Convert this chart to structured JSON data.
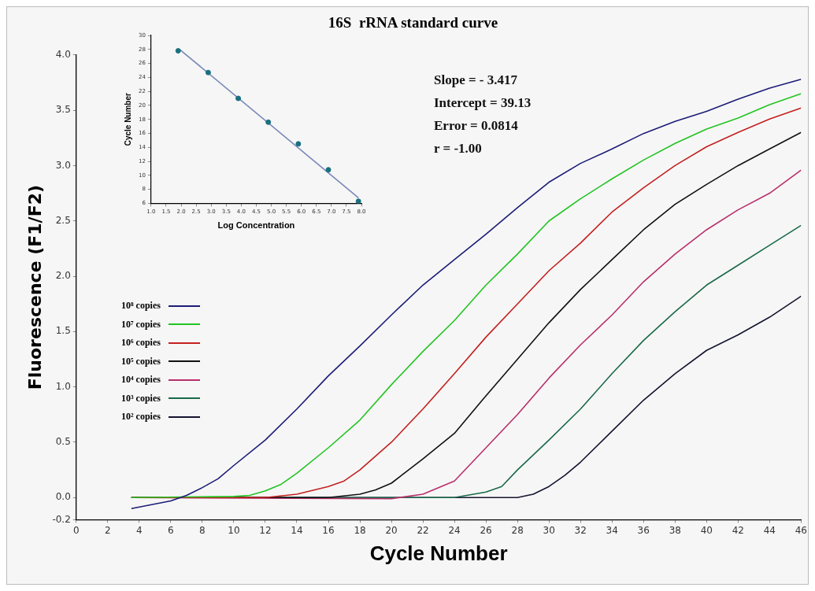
{
  "chart_data": [
    {
      "type": "line",
      "title": "16S  rRNA standard curve",
      "xlabel": "Cycle Number",
      "ylabel": "Fluorescence (F1/F2)",
      "xlim": [
        0,
        46
      ],
      "xticks": [
        0,
        2,
        4,
        6,
        8,
        10,
        12,
        14,
        16,
        18,
        20,
        22,
        24,
        26,
        28,
        30,
        32,
        34,
        36,
        38,
        40,
        42,
        44,
        46
      ],
      "ylim": [
        -0.2,
        4.0
      ],
      "yticks": [
        -0.2,
        {
          "value": 0,
          "label": "0.0"
        },
        0.5,
        {
          "value": 1,
          "label": "1.0"
        },
        1.5,
        {
          "value": 2,
          "label": "2.0"
        },
        2.5,
        {
          "value": 3,
          "label": "3.0"
        },
        3.5,
        {
          "value": 4,
          "label": "4.0"
        }
      ],
      "grid": false,
      "legend": "left",
      "marker": "none",
      "annotations": [
        "Slope = - 3.417",
        "Intercept = 39.13",
        "Error = 0.0814",
        "r = -1.00"
      ],
      "series": [
        {
          "name": "10⁸ copies",
          "color": "#1c1c78",
          "x": [
            3.5,
            6,
            7,
            8,
            9,
            10,
            12,
            14,
            16,
            18,
            20,
            22,
            24,
            26,
            28,
            30,
            32,
            34,
            36,
            38,
            40,
            42,
            44,
            46
          ],
          "values": [
            -0.1,
            -0.03,
            0.02,
            0.09,
            0.17,
            0.29,
            0.52,
            0.8,
            1.1,
            1.37,
            1.65,
            1.92,
            2.15,
            2.38,
            2.62,
            2.85,
            3.02,
            3.15,
            3.29,
            3.4,
            3.49,
            3.6,
            3.7,
            3.78
          ]
        },
        {
          "name": "10⁷ copies",
          "color": "#22c422",
          "x": [
            3.5,
            10,
            11,
            12,
            13,
            14,
            16,
            18,
            20,
            22,
            24,
            26,
            28,
            30,
            32,
            34,
            36,
            38,
            40,
            42,
            44,
            46
          ],
          "values": [
            0,
            0.01,
            0.02,
            0.06,
            0.12,
            0.22,
            0.45,
            0.7,
            1.02,
            1.32,
            1.6,
            1.92,
            2.2,
            2.5,
            2.7,
            2.88,
            3.05,
            3.2,
            3.33,
            3.43,
            3.55,
            3.65
          ]
        },
        {
          "name": "10⁶ copies",
          "color": "#c42020",
          "x": [
            3.5,
            12,
            14,
            16,
            17,
            18,
            20,
            22,
            24,
            26,
            28,
            30,
            32,
            34,
            36,
            38,
            40,
            42,
            44,
            46
          ],
          "values": [
            0,
            0,
            0.03,
            0.1,
            0.15,
            0.25,
            0.5,
            0.8,
            1.12,
            1.45,
            1.75,
            2.05,
            2.3,
            2.58,
            2.8,
            3.0,
            3.17,
            3.3,
            3.42,
            3.52
          ]
        },
        {
          "name": "10⁵ copies",
          "color": "#111111",
          "x": [
            3.5,
            16,
            18,
            19,
            20,
            22,
            24,
            26,
            28,
            30,
            32,
            34,
            36,
            38,
            40,
            42,
            44,
            46
          ],
          "values": [
            0,
            0,
            0.03,
            0.07,
            0.13,
            0.35,
            0.58,
            0.92,
            1.25,
            1.58,
            1.88,
            2.15,
            2.42,
            2.65,
            2.83,
            3.0,
            3.15,
            3.3
          ]
        },
        {
          "name": "10⁴ copies",
          "color": "#b8306a",
          "x": [
            3.5,
            20,
            22,
            24,
            26,
            28,
            30,
            32,
            34,
            36,
            38,
            40,
            42,
            44,
            46
          ],
          "values": [
            0,
            -0.01,
            0.03,
            0.15,
            0.45,
            0.75,
            1.08,
            1.38,
            1.65,
            1.95,
            2.2,
            2.42,
            2.6,
            2.75,
            2.96
          ]
        },
        {
          "name": "10³ copies",
          "color": "#1a6a48",
          "x": [
            3.5,
            24,
            26,
            27,
            28,
            30,
            32,
            34,
            36,
            38,
            40,
            42,
            44,
            46
          ],
          "values": [
            0,
            0,
            0.05,
            0.1,
            0.25,
            0.52,
            0.8,
            1.12,
            1.42,
            1.68,
            1.92,
            2.1,
            2.28,
            2.46
          ]
        },
        {
          "name": "10² copies",
          "color": "#141430",
          "x": [
            3.5,
            28,
            29,
            30,
            31,
            32,
            34,
            36,
            38,
            40,
            42,
            44,
            46
          ],
          "values": [
            0,
            0,
            0.03,
            0.1,
            0.2,
            0.32,
            0.6,
            0.88,
            1.12,
            1.33,
            1.47,
            1.63,
            1.82
          ]
        }
      ]
    },
    {
      "type": "scatter",
      "xlabel": "Log Concentration",
      "ylabel": "Cycle Number",
      "xlim": [
        1,
        8
      ],
      "xticks": [
        {
          "value": 1,
          "label": "1.0"
        },
        1.5,
        {
          "value": 2,
          "label": "2.0"
        },
        2.5,
        {
          "value": 3,
          "label": "3.0"
        },
        3.5,
        {
          "value": 4,
          "label": "4.0"
        },
        4.5,
        {
          "value": 5,
          "label": "5.0"
        },
        5.5,
        {
          "value": 6,
          "label": "6.0"
        },
        6.5,
        {
          "value": 7,
          "label": "7.0"
        },
        7.5,
        {
          "value": 8,
          "label": "8.0"
        }
      ],
      "ylim": [
        6,
        30
      ],
      "yticks": [
        6,
        8,
        10,
        12,
        14,
        16,
        18,
        20,
        22,
        24,
        26,
        28,
        30
      ],
      "grid": false,
      "series": [
        {
          "color": "#1a7080",
          "marker": "circle",
          "x": [
            1.9,
            2.9,
            3.9,
            4.9,
            5.9,
            6.9,
            7.9
          ],
          "values": [
            27.8,
            24.7,
            21,
            17.6,
            14.5,
            10.8,
            6.3
          ]
        },
        {
          "type": "line",
          "color": "#7888b8",
          "marker": "none",
          "x": [
            1.95,
            7.9
          ],
          "values": [
            28,
            6.8
          ]
        }
      ]
    }
  ]
}
